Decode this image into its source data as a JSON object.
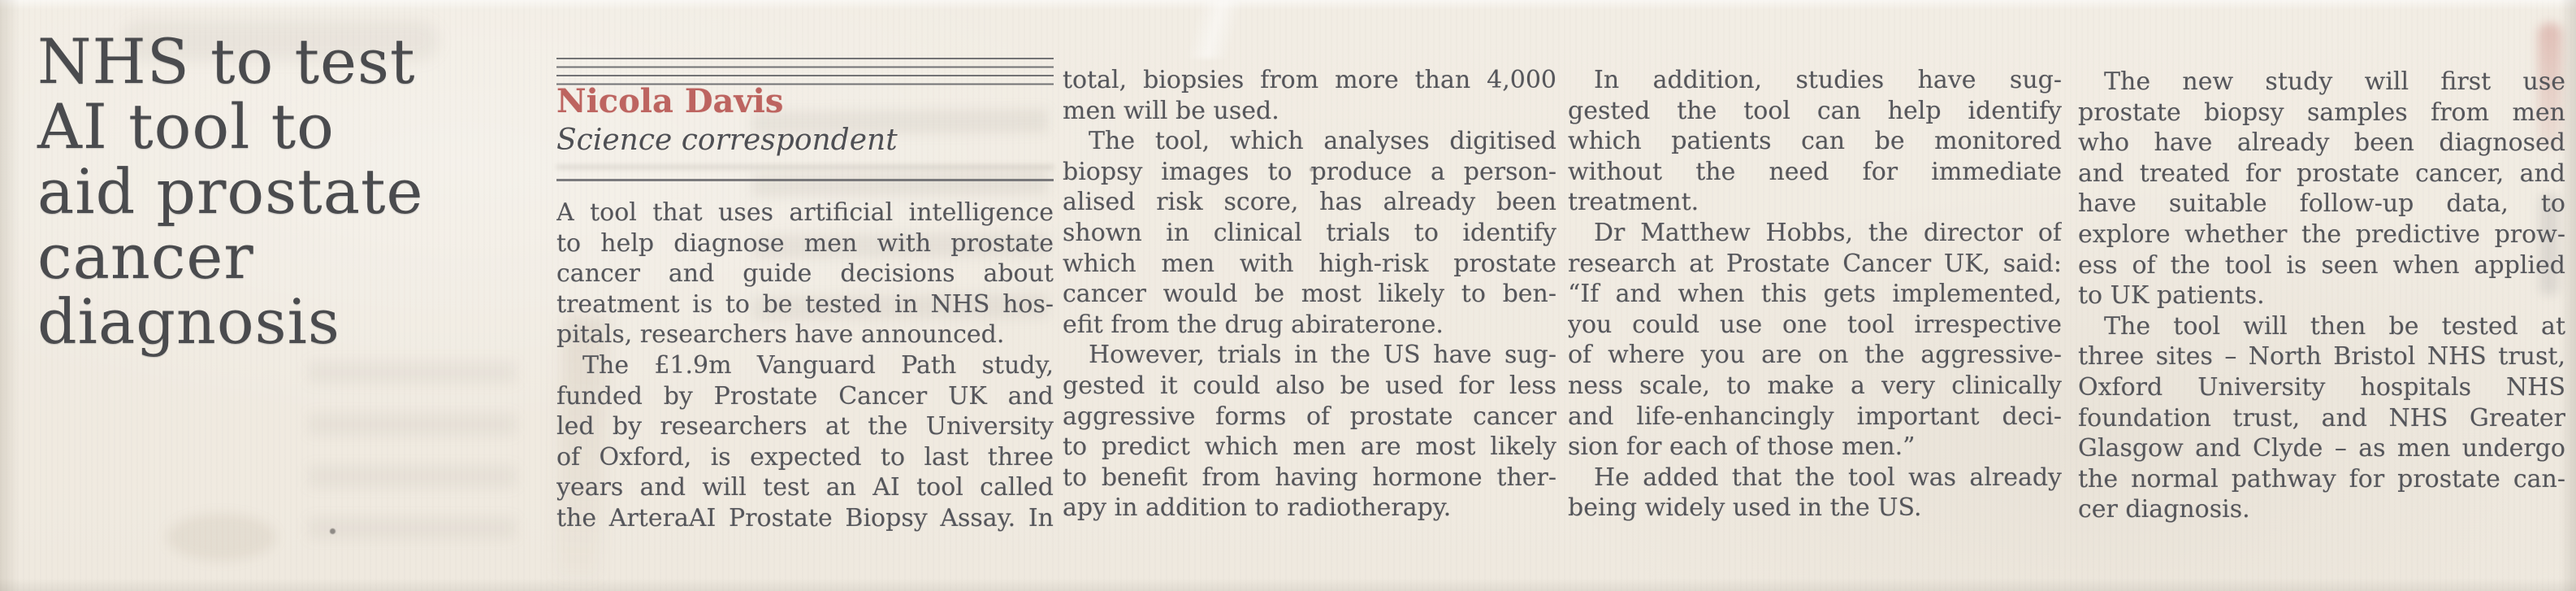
{
  "article": {
    "headline_text": "NHS to test AI tool to aid prostate cancer diagnosis",
    "headline_lines": [
      "NHS to test",
      "AI tool to",
      "aid prostate",
      "cancer",
      "diagnosis"
    ],
    "byline": {
      "author": "Nicola Davis",
      "role": "Science correspondent"
    },
    "columns": [
      {
        "lines": [
          {
            "text": "A tool that uses artificial intelligence"
          },
          {
            "text": "to help diagnose men with prostate"
          },
          {
            "text": "cancer and guide decisions about"
          },
          {
            "text": "treatment is to be tested in NHS hos-"
          },
          {
            "text": "pitals, researchers have announced.",
            "end": true
          },
          {
            "text": "The £1.9m Vanguard Path study,",
            "indent": true
          },
          {
            "text": "funded by Prostate Cancer UK and"
          },
          {
            "text": "led by researchers at the University"
          },
          {
            "text": "of Oxford, is expected to last three"
          },
          {
            "text": "years and will test an AI tool called"
          },
          {
            "text": "the ArteraAI Prostate Biopsy Assay. In"
          }
        ]
      },
      {
        "lines": [
          {
            "text": "total, biopsies from more than 4,000"
          },
          {
            "text": "men will be used.",
            "end": true
          },
          {
            "text": "The tool, which analyses digitised",
            "indent": true
          },
          {
            "text": "biopsy images to produce a person-"
          },
          {
            "text": "alised risk score, has already been"
          },
          {
            "text": "shown in clinical trials to identify"
          },
          {
            "text": "which men with high-risk prostate"
          },
          {
            "text": "cancer would be most likely to ben-"
          },
          {
            "text": "efit from the drug abiraterone.",
            "end": true
          },
          {
            "text": "However, trials in the US have sug-",
            "indent": true
          },
          {
            "text": "gested it could also be used for less"
          },
          {
            "text": "aggressive forms of prostate cancer"
          },
          {
            "text": "to predict which men are most likely"
          },
          {
            "text": "to benefit from having hormone ther-"
          },
          {
            "text": "apy in addition to radiotherapy.",
            "end": true
          }
        ]
      },
      {
        "lines": [
          {
            "text": "In addition, studies have sug-",
            "indent": true
          },
          {
            "text": "gested the tool can help identify"
          },
          {
            "text": "which patients can be monitored"
          },
          {
            "text": "without the need for immediate"
          },
          {
            "text": "treatment.",
            "end": true
          },
          {
            "text": "Dr Matthew Hobbs, the director of",
            "indent": true
          },
          {
            "text": "research at Prostate Cancer UK, said:"
          },
          {
            "text": "“If and when this gets implemented,"
          },
          {
            "text": "you could use one tool irrespective"
          },
          {
            "text": "of where you are on the aggressive-"
          },
          {
            "text": "ness scale, to make a very clinically"
          },
          {
            "text": "and life-enhancingly important deci-"
          },
          {
            "text": "sion for each of those men.”",
            "end": true
          },
          {
            "text": "He added that the tool was already",
            "indent": true
          },
          {
            "text": "being widely used in the US.",
            "end": true
          }
        ]
      },
      {
        "lines": [
          {
            "text": "The new study will first use",
            "indent": true
          },
          {
            "text": "prostate biopsy samples from men"
          },
          {
            "text": "who have already been diagnosed"
          },
          {
            "text": "and treated for prostate cancer, and"
          },
          {
            "text": "have suitable follow-up data, to"
          },
          {
            "text": "explore whether the predictive prow-"
          },
          {
            "text": "ess of the tool is seen when applied"
          },
          {
            "text": "to UK patients.",
            "end": true
          },
          {
            "text": "The tool will then be tested at",
            "indent": true
          },
          {
            "text": "three sites – North Bristol NHS trust,"
          },
          {
            "text": "Oxford University hospitals NHS"
          },
          {
            "text": "foundation trust, and NHS Greater"
          },
          {
            "text": "Glasgow and Clyde – as men undergo"
          },
          {
            "text": "the normal pathway for prostate can-"
          },
          {
            "text": "cer diagnosis.",
            "end": true
          }
        ]
      }
    ]
  },
  "colors": {
    "paper": "#f0ebe2",
    "headline_ink": "#4a4b4e",
    "body_ink": "#55565b",
    "byline_red": "#bd6460",
    "rule": "#5c5d61"
  }
}
